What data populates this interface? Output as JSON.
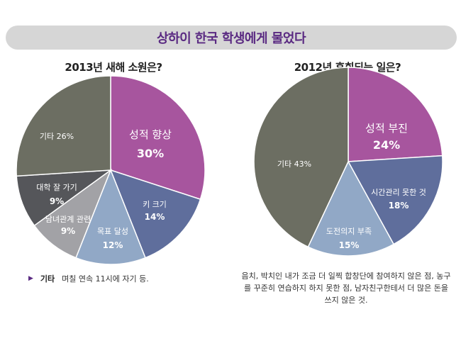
{
  "banner_title": "상하이 한국 학생에게 물었다",
  "colors": {
    "purple": "#a7559e",
    "blue": "#5f6e9c",
    "light_blue": "#91a8c6",
    "gray": "#a2a2a6",
    "dark_gray": "#55565a",
    "olive_gray": "#6c6e62"
  },
  "chart_data": [
    {
      "type": "pie",
      "title": "2013년 새해 소원은?",
      "slices": [
        {
          "label": "성적 향상",
          "value": 30,
          "value_text": "30%",
          "color": "#a7559e"
        },
        {
          "label": "키 크기",
          "value": 14,
          "value_text": "14%",
          "color": "#5f6e9c"
        },
        {
          "label": "목표 달성",
          "value": 12,
          "value_text": "12%",
          "color": "#91a8c6"
        },
        {
          "label": "남녀관계 관련",
          "value": 9,
          "value_text": "9%",
          "color": "#a2a2a6"
        },
        {
          "label": "대학 잘 가기",
          "value": 9,
          "value_text": "9%",
          "color": "#55565a"
        },
        {
          "label": "기타",
          "value": 26,
          "value_text": "26%",
          "color": "#6c6e62"
        }
      ]
    },
    {
      "type": "pie",
      "title": "2012년 후회되는 일은?",
      "slices": [
        {
          "label": "성적 부진",
          "value": 24,
          "value_text": "24%",
          "color": "#a7559e"
        },
        {
          "label": "시간관리 못한 것",
          "value": 18,
          "value_text": "18%",
          "color": "#5f6e9c"
        },
        {
          "label": "도전의지 부족",
          "value": 15,
          "value_text": "15%",
          "color": "#91a8c6"
        },
        {
          "label": "기타",
          "value": 43,
          "value_text": "43%",
          "color": "#6c6e62"
        }
      ]
    }
  ],
  "notes": {
    "left_key": "기타",
    "left_text": "며칠 연속 11시에 자기 등.",
    "right_text": "음치, 박치인 내가 조금 더 일찍 합창단에 참여하지 않은 점, 농구를 꾸준히 연습하지 하지 못한 점, 남자친구한테서 더 많은 돈을 쓰지 않은 것."
  }
}
